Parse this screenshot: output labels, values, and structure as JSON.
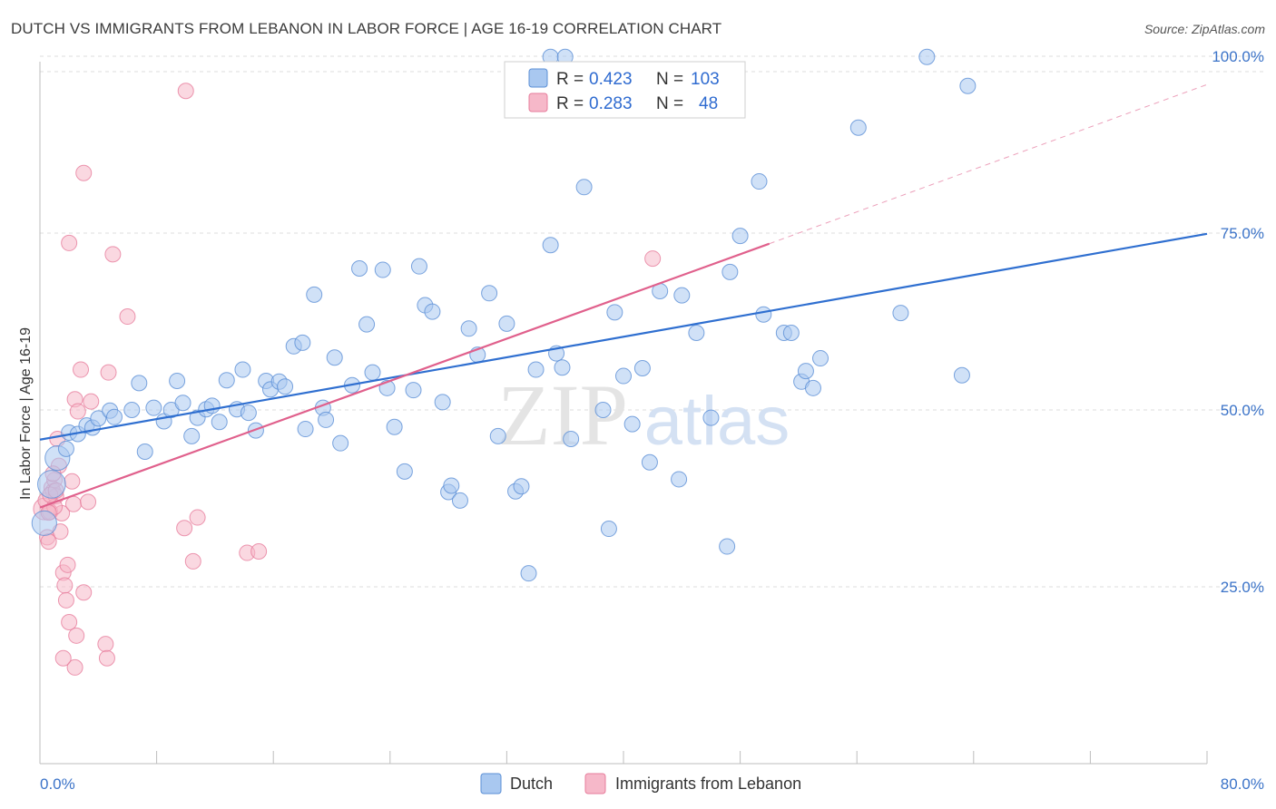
{
  "title": "DUTCH VS IMMIGRANTS FROM LEBANON IN LABOR FORCE | AGE 16-19 CORRELATION CHART",
  "source": "Source: ZipAtlas.com",
  "colors": {
    "dutch_fill": "#a9c8f0",
    "dutch_stroke": "#5b8fd6",
    "dutch_line": "#2f6fd0",
    "lebanon_fill": "#f6b8c9",
    "lebanon_stroke": "#e77d9c",
    "lebanon_line": "#e0608c",
    "grid": "#dcdcdc",
    "tick_label": "#3b73c8",
    "watermark": "#e6e6e6"
  },
  "legend": {
    "rows": [
      {
        "series": "Dutch",
        "r_label": "R =",
        "r_value": "0.423",
        "n_label": "N =",
        "n_value": "103"
      },
      {
        "series": "Immigrants from Lebanon",
        "r_label": "R =",
        "r_value": "0.283",
        "n_label": "N =",
        "n_value": "48"
      }
    ]
  },
  "watermark": {
    "zip": "ZIP",
    "atlas": "atlas"
  },
  "chart_data": {
    "type": "scatter",
    "title": "DUTCH VS IMMIGRANTS FROM LEBANON IN LABOR FORCE | AGE 16-19 CORRELATION CHART",
    "xlabel": "",
    "ylabel": "In Labor Force | Age 16-19",
    "xlim": [
      0,
      80
    ],
    "ylim": [
      0,
      100
    ],
    "x_tick_labels": [
      "0.0%",
      "80.0%"
    ],
    "y_ticks": [
      25,
      50,
      75,
      100
    ],
    "y_tick_labels": [
      "25.0%",
      "50.0%",
      "75.0%",
      "100.0%"
    ],
    "grid": true,
    "legend_position": "top-center",
    "series": [
      {
        "name": "Dutch",
        "trend": {
          "x": [
            0,
            80
          ],
          "y": [
            45.8,
            74.9
          ],
          "style": "solid"
        },
        "points": [
          [
            0.8,
            39.5,
            1.8
          ],
          [
            1.2,
            43.2,
            1.6
          ],
          [
            0.3,
            34.0,
            1.6
          ],
          [
            1.8,
            44.5,
            1
          ],
          [
            2.0,
            46.8,
            1
          ],
          [
            2.6,
            46.6,
            1
          ],
          [
            3.2,
            47.8,
            1
          ],
          [
            3.6,
            47.5,
            1
          ],
          [
            4.0,
            48.8,
            1
          ],
          [
            4.8,
            49.9,
            1
          ],
          [
            5.1,
            49.0,
            1
          ],
          [
            6.3,
            50.0,
            1
          ],
          [
            6.8,
            53.8,
            1
          ],
          [
            7.2,
            44.1,
            1
          ],
          [
            7.8,
            50.3,
            1
          ],
          [
            8.5,
            48.4,
            1
          ],
          [
            9.0,
            50.0,
            1
          ],
          [
            9.4,
            54.1,
            1
          ],
          [
            9.8,
            51.0,
            1
          ],
          [
            10.4,
            46.3,
            1
          ],
          [
            10.8,
            48.9,
            1
          ],
          [
            11.4,
            50.1,
            1
          ],
          [
            11.8,
            50.6,
            1
          ],
          [
            12.3,
            48.3,
            1
          ],
          [
            12.8,
            54.2,
            1
          ],
          [
            13.5,
            50.1,
            1
          ],
          [
            13.9,
            55.7,
            1
          ],
          [
            14.3,
            49.6,
            1
          ],
          [
            14.8,
            47.1,
            1
          ],
          [
            15.5,
            54.1,
            1
          ],
          [
            15.8,
            52.9,
            1
          ],
          [
            16.4,
            54.0,
            1
          ],
          [
            16.8,
            53.3,
            1
          ],
          [
            17.4,
            59.0,
            1
          ],
          [
            18.0,
            59.5,
            1
          ],
          [
            18.2,
            47.3,
            1
          ],
          [
            18.8,
            66.3,
            1
          ],
          [
            19.4,
            50.3,
            1
          ],
          [
            19.6,
            48.6,
            1
          ],
          [
            20.2,
            57.4,
            1
          ],
          [
            20.6,
            45.3,
            1
          ],
          [
            21.4,
            53.5,
            1
          ],
          [
            21.9,
            70.0,
            1
          ],
          [
            22.4,
            62.1,
            1
          ],
          [
            22.8,
            55.3,
            1
          ],
          [
            23.5,
            69.8,
            1
          ],
          [
            23.8,
            53.1,
            1
          ],
          [
            24.3,
            47.6,
            1
          ],
          [
            25.0,
            41.3,
            1
          ],
          [
            25.6,
            52.8,
            1
          ],
          [
            26.0,
            70.3,
            1
          ],
          [
            26.4,
            64.8,
            1
          ],
          [
            26.9,
            63.9,
            1
          ],
          [
            27.6,
            51.1,
            1
          ],
          [
            28.0,
            38.4,
            1
          ],
          [
            28.2,
            39.3,
            1
          ],
          [
            28.8,
            37.2,
            1
          ],
          [
            29.4,
            61.5,
            1
          ],
          [
            30.0,
            57.8,
            1
          ],
          [
            30.8,
            66.5,
            1
          ],
          [
            31.4,
            46.3,
            1
          ],
          [
            32.0,
            62.2,
            1
          ],
          [
            32.6,
            38.5,
            1
          ],
          [
            33.0,
            39.2,
            1
          ],
          [
            33.5,
            26.9,
            1
          ],
          [
            34.0,
            55.7,
            1
          ],
          [
            35.0,
            73.3,
            1
          ],
          [
            35.4,
            58.0,
            1
          ],
          [
            35.8,
            56.0,
            1
          ],
          [
            36.4,
            45.9,
            1
          ],
          [
            37.3,
            81.5,
            1
          ],
          [
            38.6,
            50.0,
            1
          ],
          [
            39.0,
            33.2,
            1
          ],
          [
            39.4,
            63.8,
            1
          ],
          [
            40.0,
            54.8,
            1
          ],
          [
            40.6,
            48.0,
            1
          ],
          [
            41.3,
            55.9,
            1
          ],
          [
            41.8,
            42.6,
            1
          ],
          [
            42.5,
            66.8,
            1
          ],
          [
            43.8,
            40.2,
            1
          ],
          [
            44.0,
            66.2,
            1
          ],
          [
            45.0,
            60.9,
            1
          ],
          [
            46.0,
            48.9,
            1
          ],
          [
            47.1,
            30.7,
            1
          ],
          [
            47.3,
            69.5,
            1
          ],
          [
            48.0,
            74.6,
            1
          ],
          [
            49.3,
            82.3,
            1
          ],
          [
            49.6,
            63.5,
            1
          ],
          [
            51.0,
            60.9,
            1
          ],
          [
            51.5,
            60.9,
            1
          ],
          [
            52.2,
            54.0,
            1
          ],
          [
            52.5,
            55.5,
            1
          ],
          [
            53.0,
            53.1,
            1
          ],
          [
            53.5,
            57.3,
            1
          ],
          [
            56.1,
            89.9,
            1
          ],
          [
            59.0,
            63.7,
            1
          ],
          [
            60.8,
            99.9,
            1
          ],
          [
            63.2,
            54.9,
            1
          ],
          [
            63.6,
            95.8,
            1
          ],
          [
            35.0,
            99.9,
            1
          ],
          [
            36.0,
            99.9,
            1
          ]
        ]
      },
      {
        "name": "Immigrants from Lebanon",
        "trend": {
          "x": [
            0,
            50
          ],
          "y": [
            36.2,
            73.5
          ],
          "style": "solid",
          "extension_x": [
            50,
            80
          ],
          "extension_y": [
            73.5,
            96.0
          ],
          "extension_style": "dashed"
        },
        "points": [
          [
            0.3,
            36.0,
            1.4
          ],
          [
            0.4,
            37.2,
            1
          ],
          [
            0.5,
            32.0,
            1
          ],
          [
            0.6,
            31.4,
            1
          ],
          [
            0.7,
            35.6,
            1
          ],
          [
            0.8,
            39.0,
            1
          ],
          [
            0.9,
            38.5,
            1
          ],
          [
            1.0,
            40.1,
            1
          ],
          [
            1.1,
            37.8,
            1
          ],
          [
            1.2,
            45.9,
            1
          ],
          [
            1.3,
            42.1,
            1
          ],
          [
            1.4,
            32.8,
            1
          ],
          [
            1.5,
            35.4,
            1
          ],
          [
            1.6,
            27.0,
            1
          ],
          [
            1.7,
            25.2,
            1
          ],
          [
            1.8,
            23.1,
            1
          ],
          [
            1.9,
            28.1,
            1
          ],
          [
            2.0,
            20.0,
            1
          ],
          [
            2.2,
            39.9,
            1
          ],
          [
            2.3,
            36.7,
            1
          ],
          [
            2.4,
            51.5,
            1
          ],
          [
            2.5,
            18.1,
            1
          ],
          [
            2.6,
            49.8,
            1
          ],
          [
            2.8,
            55.7,
            1
          ],
          [
            3.0,
            24.2,
            1
          ],
          [
            3.3,
            37.0,
            1
          ],
          [
            3.5,
            51.2,
            1
          ],
          [
            2.0,
            73.6,
            1
          ],
          [
            3.0,
            83.5,
            1
          ],
          [
            4.5,
            16.9,
            1
          ],
          [
            4.6,
            14.9,
            1
          ],
          [
            4.7,
            55.3,
            1
          ],
          [
            5.0,
            72.0,
            1
          ],
          [
            6.0,
            63.2,
            1
          ],
          [
            2.4,
            13.6,
            1
          ],
          [
            1.6,
            14.9,
            1
          ],
          [
            10.0,
            95.1,
            1
          ],
          [
            9.9,
            33.3,
            1
          ],
          [
            10.5,
            28.6,
            1
          ],
          [
            10.8,
            34.8,
            1
          ],
          [
            14.2,
            29.8,
            1
          ],
          [
            15.0,
            30.0,
            1
          ],
          [
            42.0,
            71.4,
            1
          ],
          [
            0.9,
            41.0,
            1
          ],
          [
            1.0,
            36.3,
            1
          ],
          [
            0.6,
            35.5,
            1
          ],
          [
            0.7,
            38.0,
            1
          ],
          [
            1.1,
            38.6,
            1
          ]
        ]
      }
    ]
  }
}
